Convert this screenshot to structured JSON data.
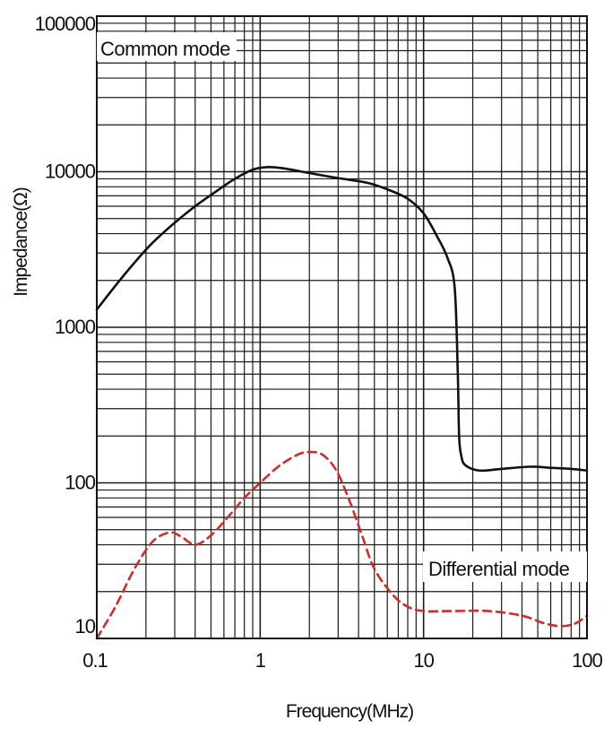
{
  "chart_data": {
    "type": "line",
    "xlabel": "Frequency(MHz)",
    "ylabel": "Impedance(Ω)",
    "xscale": "log",
    "yscale": "log",
    "xlim": [
      0.1,
      100
    ],
    "ylim": [
      10,
      100000
    ],
    "x_ticks": [
      "0.1",
      "1",
      "10",
      "100"
    ],
    "y_ticks": [
      "10",
      "100",
      "1000",
      "10000",
      "100000"
    ],
    "grid": true,
    "colors": {
      "common": "#111111",
      "differential": "#d42a2a",
      "grid": "#1a1a1a"
    },
    "series": [
      {
        "name": "Common mode",
        "style": "solid",
        "x": [
          0.1,
          0.13,
          0.17,
          0.22,
          0.3,
          0.4,
          0.55,
          0.7,
          0.9,
          1.1,
          1.4,
          2,
          3,
          4.5,
          6,
          8,
          10,
          12,
          14,
          15.5,
          16.2,
          16.5,
          17,
          18,
          22,
          30,
          45,
          60,
          80,
          100
        ],
        "y": [
          1300,
          1850,
          2600,
          3500,
          4700,
          6000,
          7600,
          9000,
          10300,
          10700,
          10500,
          9800,
          9100,
          8500,
          7700,
          6700,
          5400,
          3900,
          2800,
          1800,
          500,
          200,
          150,
          130,
          120,
          123,
          127,
          125,
          123,
          120
        ]
      },
      {
        "name": "Differential mode",
        "style": "dashed",
        "x": [
          0.1,
          0.13,
          0.17,
          0.22,
          0.28,
          0.33,
          0.4,
          0.5,
          0.65,
          0.8,
          1,
          1.3,
          1.7,
          2,
          2.4,
          2.9,
          3.5,
          4.2,
          5,
          6.5,
          8,
          10,
          15,
          25,
          40,
          55,
          70,
          85,
          100
        ],
        "y": [
          10,
          16,
          28,
          42,
          48,
          45,
          40,
          46,
          62,
          80,
          100,
          128,
          152,
          158,
          152,
          122,
          78,
          46,
          28,
          19,
          16,
          15,
          15,
          15,
          14,
          12.5,
          12,
          12.5,
          14
        ]
      }
    ]
  }
}
